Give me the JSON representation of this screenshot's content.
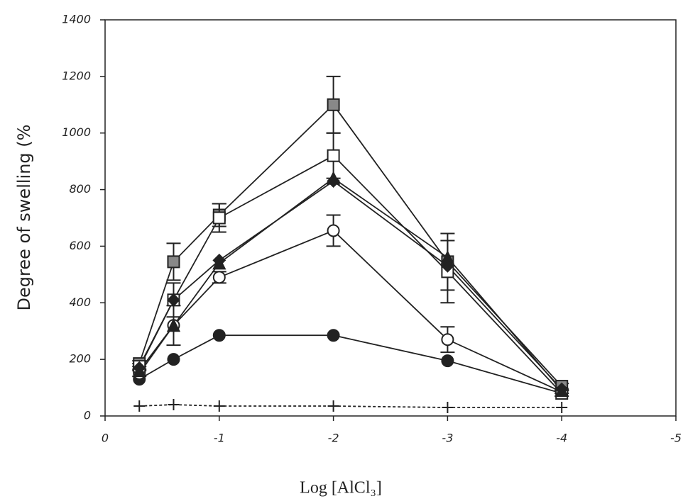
{
  "chart_data": {
    "type": "line",
    "xlabel": "Log [AlCl₃]",
    "ylabel": "Degree of swelling (%",
    "x": [
      -0.3,
      -0.6,
      -1,
      -2,
      -3,
      -4
    ],
    "xlim": [
      0,
      -5
    ],
    "xticks": [
      0,
      -1,
      -2,
      -3,
      -4,
      -5
    ],
    "ylim": [
      0,
      1400
    ],
    "yticks": [
      0,
      200,
      400,
      600,
      800,
      1000,
      1200,
      1400
    ],
    "grid": false,
    "series": [
      {
        "color": "#222222",
        "marker": "plus",
        "line_style": "dashed",
        "values": [
          35,
          40,
          35,
          35,
          30,
          30
        ]
      },
      {
        "color": "#222222",
        "marker": "circle",
        "values": [
          130,
          200,
          285,
          285,
          195,
          80
        ]
      },
      {
        "color": "#222222",
        "marker": "circle-open",
        "values": [
          150,
          320,
          490,
          655,
          270,
          85
        ],
        "errors": [
          10,
          70,
          20,
          55,
          45,
          5
        ]
      },
      {
        "color": "#222222",
        "marker": "square-gray",
        "values": [
          185,
          545,
          710,
          1100,
          545,
          105
        ],
        "errors": [
          10,
          65,
          40,
          100,
          100,
          10
        ]
      },
      {
        "color": "#222222",
        "marker": "square-open",
        "values": [
          175,
          410,
          700,
          920,
          510,
          80
        ],
        "errors": [
          10,
          60,
          50,
          80,
          110,
          10
        ]
      },
      {
        "color": "#222222",
        "marker": "triangle",
        "values": [
          160,
          320,
          540,
          840,
          560,
          90
        ]
      },
      {
        "color": "#222222",
        "marker": "diamond",
        "values": [
          170,
          410,
          550,
          830,
          530,
          95
        ]
      }
    ]
  }
}
